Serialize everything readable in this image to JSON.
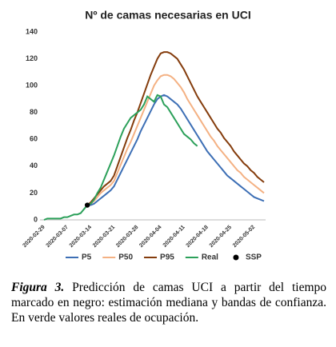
{
  "chart_data": {
    "type": "line",
    "title": "Nº de camas necesarias en UCI",
    "categories": [
      "2020-02-29",
      null,
      null,
      null,
      null,
      null,
      null,
      "2020-03-07",
      null,
      null,
      null,
      null,
      null,
      null,
      "2020-03-14",
      null,
      null,
      null,
      null,
      null,
      null,
      "2020-03-21",
      null,
      null,
      null,
      null,
      null,
      null,
      "2020-03-28",
      null,
      null,
      null,
      null,
      null,
      null,
      "2020-04-04",
      null,
      null,
      null,
      null,
      null,
      null,
      "2020-04-11",
      null,
      null,
      null,
      null,
      null,
      null,
      "2020-04-18",
      null,
      null,
      null,
      null,
      null,
      null,
      "2020-04-25",
      null,
      null,
      null,
      null,
      null,
      null,
      "2020-05-02",
      null,
      null,
      null
    ],
    "series": [
      {
        "name": "P5",
        "color": "#3d6fb5",
        "style": "line",
        "values": [
          null,
          null,
          null,
          null,
          null,
          null,
          null,
          null,
          null,
          null,
          null,
          null,
          null,
          11,
          11,
          12,
          14,
          16,
          18,
          20,
          22,
          25,
          30,
          35,
          40,
          45,
          50,
          55,
          60,
          66,
          71,
          76,
          81,
          86,
          90,
          92,
          93,
          92,
          90,
          88,
          86,
          83,
          79,
          75,
          71,
          67,
          63,
          59,
          55,
          51,
          48,
          45,
          42,
          39,
          36,
          33,
          31,
          29,
          27,
          25,
          23,
          21,
          19,
          17,
          16,
          15,
          14
        ]
      },
      {
        "name": "P50",
        "color": "#f4b183",
        "style": "line",
        "values": [
          null,
          null,
          null,
          null,
          null,
          null,
          null,
          null,
          null,
          null,
          null,
          null,
          null,
          11,
          12,
          14,
          17,
          20,
          22,
          24,
          26,
          29,
          35,
          41,
          47,
          53,
          58,
          64,
          70,
          76,
          82,
          88,
          94,
          100,
          104,
          107,
          108,
          108,
          107,
          105,
          102,
          99,
          95,
          90,
          86,
          82,
          78,
          74,
          70,
          66,
          62,
          59,
          55,
          52,
          49,
          46,
          43,
          40,
          37,
          35,
          32,
          30,
          28,
          26,
          24,
          22,
          20
        ]
      },
      {
        "name": "P95",
        "color": "#843c0c",
        "style": "line",
        "values": [
          null,
          null,
          null,
          null,
          null,
          null,
          null,
          null,
          null,
          null,
          null,
          null,
          null,
          11,
          13,
          16,
          19,
          22,
          25,
          27,
          29,
          33,
          40,
          47,
          54,
          61,
          67,
          74,
          80,
          87,
          94,
          101,
          108,
          114,
          120,
          124,
          125,
          125,
          124,
          122,
          120,
          116,
          112,
          107,
          102,
          97,
          92,
          88,
          84,
          80,
          76,
          72,
          68,
          65,
          61,
          58,
          55,
          51,
          48,
          45,
          42,
          40,
          37,
          35,
          32,
          30,
          28
        ]
      },
      {
        "name": "Real",
        "color": "#2ca05a",
        "style": "line",
        "values": [
          0,
          1,
          1,
          1,
          1,
          1,
          2,
          2,
          3,
          4,
          4,
          5,
          8,
          11,
          12,
          15,
          20,
          24,
          30,
          36,
          42,
          48,
          55,
          62,
          68,
          72,
          76,
          78,
          80,
          82,
          86,
          92,
          90,
          88,
          93,
          92,
          86,
          84,
          80,
          76,
          72,
          68,
          64,
          62,
          60,
          57,
          55,
          null,
          null,
          null,
          null,
          null,
          null,
          null,
          null,
          null,
          null,
          null,
          null,
          null,
          null,
          null,
          null,
          null,
          null,
          null,
          null
        ]
      },
      {
        "name": "SSP",
        "color": "#000000",
        "style": "marker",
        "values": [
          null,
          null,
          null,
          null,
          null,
          null,
          null,
          null,
          null,
          null,
          null,
          null,
          null,
          11,
          null,
          null,
          null,
          null,
          null,
          null,
          null,
          null,
          null,
          null,
          null,
          null,
          null,
          null,
          null,
          null,
          null,
          null,
          null,
          null,
          null,
          null,
          null,
          null,
          null,
          null,
          null,
          null,
          null,
          null,
          null,
          null,
          null,
          null,
          null,
          null,
          null,
          null,
          null,
          null,
          null,
          null,
          null,
          null,
          null,
          null,
          null,
          null,
          null,
          null,
          null,
          null,
          null
        ]
      }
    ],
    "ylim": [
      0,
      140
    ],
    "yticks": [
      0,
      20,
      40,
      60,
      80,
      100,
      120,
      140
    ],
    "grid": false,
    "legend": "bottom"
  },
  "caption": {
    "label": "Figura 3.",
    "text": "Predicción de camas UCI a partir del tiempo marcado en negro: estimación mediana y bandas de confianza. En verde valores reales de ocupación."
  }
}
